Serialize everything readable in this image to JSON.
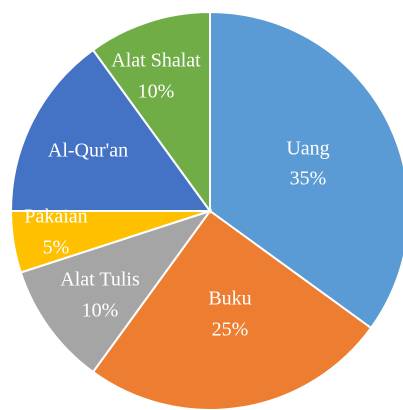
{
  "chart_data": {
    "type": "pie",
    "categories": [
      "Uang",
      "Buku",
      "Alat Tulis",
      "Pakaian",
      "Al-Qur'an",
      "Alat Shalat"
    ],
    "values": [
      35,
      25,
      10,
      5,
      15,
      10
    ],
    "value_labels": [
      "35%",
      "25%",
      "10%",
      "5%",
      null,
      "10%"
    ],
    "colors": [
      "#5b9bd5",
      "#ed7d31",
      "#a5a5a5",
      "#ffc000",
      "#4472c4",
      "#70ad47"
    ]
  }
}
